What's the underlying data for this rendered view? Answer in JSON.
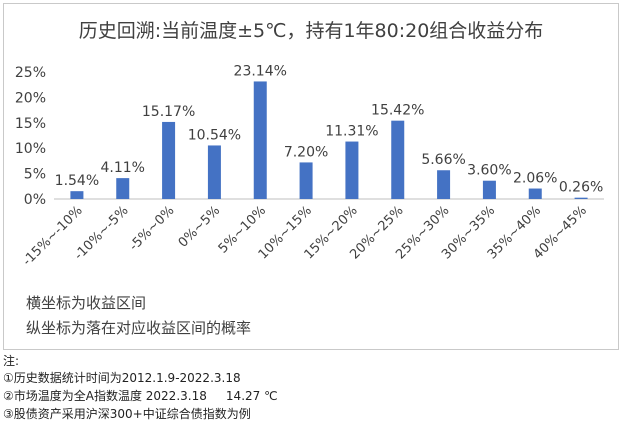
{
  "chart_data": {
    "type": "bar",
    "title": "历史回溯:当前温度±5℃，持有1年80:20组合收益分布",
    "categories": [
      "-15%~-10%",
      "-10%~-5%",
      "-5%~0%",
      "0%~5%",
      "5%~10%",
      "10%~15%",
      "15%~20%",
      "20%~25%",
      "25%~30%",
      "30%~35%",
      "35%~40%",
      "40%~45%"
    ],
    "values": [
      1.54,
      4.11,
      15.17,
      10.54,
      23.14,
      7.2,
      11.31,
      15.42,
      5.66,
      3.6,
      2.06,
      0.26
    ],
    "value_labels": [
      "1.54%",
      "4.11%",
      "15.17%",
      "10.54%",
      "23.14%",
      "7.20%",
      "11.31%",
      "15.42%",
      "5.66%",
      "3.60%",
      "2.06%",
      "0.26%"
    ],
    "y_ticks": [
      0,
      5,
      10,
      15,
      20,
      25
    ],
    "y_tick_labels": [
      "0%",
      "5%",
      "10%",
      "15%",
      "20%",
      "25%"
    ],
    "ylim": [
      0,
      25
    ],
    "grid": false,
    "legend": "none",
    "bar_color": "#4472c4",
    "captions": [
      "横坐标为收益区间",
      "纵坐标为落在对应收益区间的概率"
    ]
  },
  "notes": {
    "title": "注:",
    "items": [
      "①历史数据统计时间为2012.1.9-2022.3.18",
      "②市场温度为全A指数温度 2022.3.18     14.27 ℃",
      "③股债资产采用沪深300+中证综合债指数为例"
    ]
  }
}
